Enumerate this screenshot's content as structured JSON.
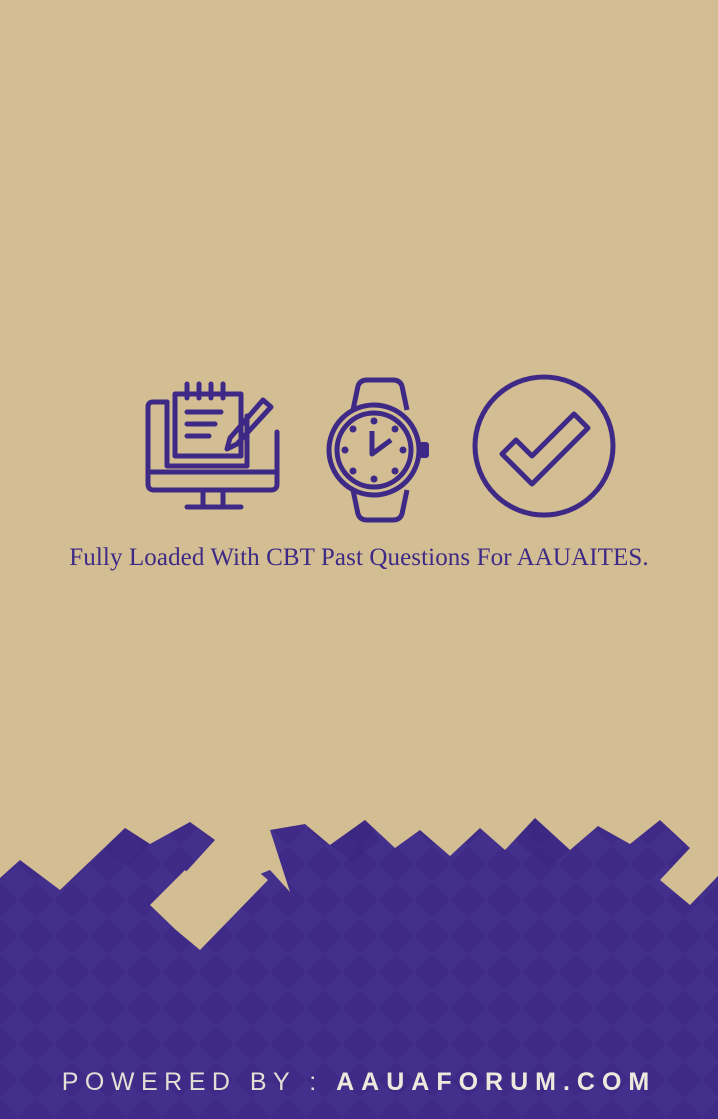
{
  "splash": {
    "tagline": "Fully Loaded With CBT Past Questions For AAUAITES.",
    "powered_prefix": "POWERED BY : ",
    "powered_site": "AAUAFORUM.COM",
    "icons": [
      "computer-notepad-icon",
      "wristwatch-icon",
      "checkmark-circle-icon"
    ]
  },
  "colors": {
    "background": "#d3bd92",
    "brand_purple": "#3e2a86",
    "footer_text": "#e4dfd4"
  }
}
